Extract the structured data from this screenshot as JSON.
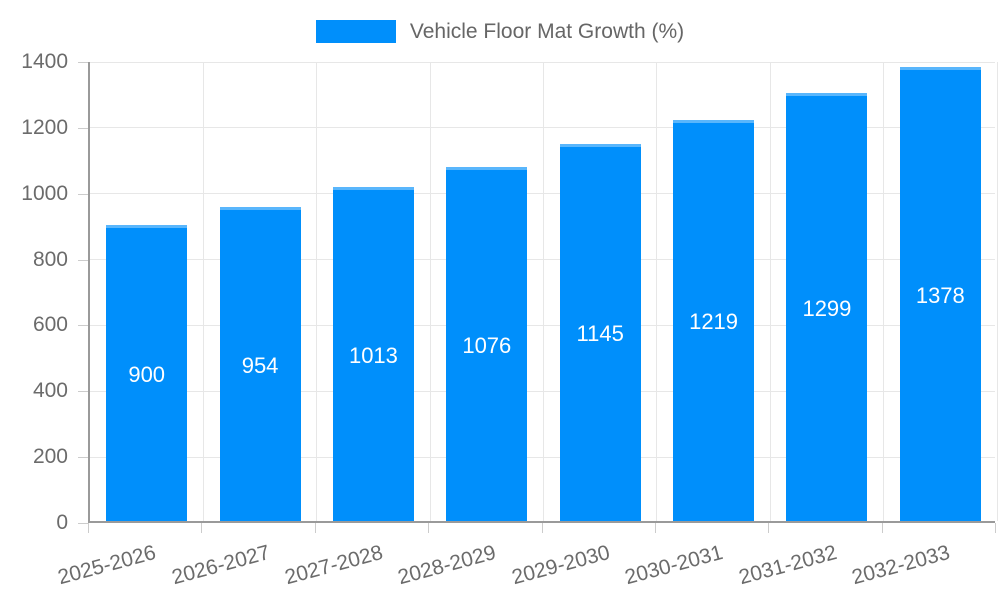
{
  "legend": {
    "items": [
      {
        "label": "Vehicle Floor Mat Growth (%)",
        "color": "#008FFB"
      }
    ],
    "position": "top"
  },
  "colors": {
    "background": "#ffffff",
    "bar": "#008FFB",
    "grid": "#e7e7e7",
    "axis": "#9a9a9a",
    "tick": "#cccccc",
    "tick_text": "#6b6b6b",
    "legend_text": "#666666",
    "value_label_text": "#ffffff"
  },
  "chart_data": {
    "type": "bar",
    "title": "Vehicle Floor Mat Growth (%)",
    "categories": [
      "2025-2026",
      "2026-2027",
      "2027-2028",
      "2028-2029",
      "2029-2030",
      "2030-2031",
      "2031-2032",
      "2032-2033"
    ],
    "values": [
      900,
      954,
      1013,
      1076,
      1145,
      1219,
      1299,
      1378
    ],
    "xlabel": "",
    "ylabel": "",
    "ylim": [
      0,
      1400
    ],
    "yticks": [
      0,
      200,
      400,
      600,
      800,
      1000,
      1200,
      1400
    ],
    "grid": true,
    "legend_position": "top",
    "bar_color": "#008FFB",
    "value_labels_position": "center",
    "x_tick_rotation_deg": -15
  }
}
